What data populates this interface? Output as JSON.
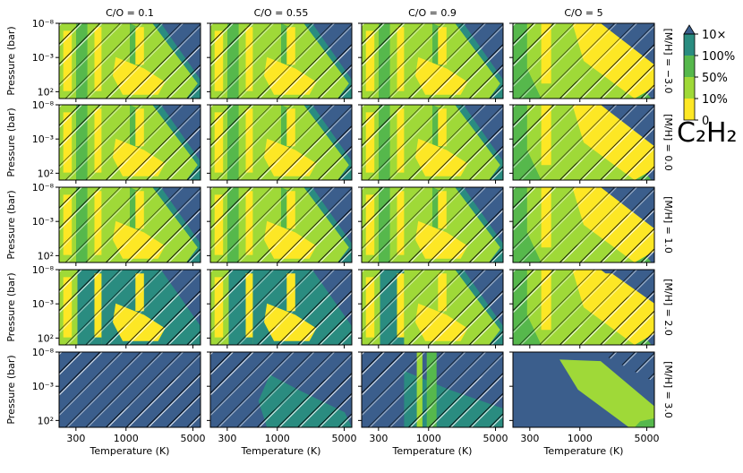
{
  "chart_data": {
    "type": "heatmap",
    "title": "C₂H₂",
    "xlabel": "Temperature (K)",
    "ylabel": "Pressure (bar)",
    "xscale": "log",
    "yscale": "log",
    "xlim": [
      200,
      6000
    ],
    "ylim": [
      1000,
      1e-08
    ],
    "x_ticks": [
      "300",
      "1000",
      "5000"
    ],
    "x_tick_values": [
      300,
      1000,
      5000
    ],
    "y_ticks": [
      "10⁻⁸",
      "10⁻³",
      "10²"
    ],
    "y_tick_values": [
      1e-08,
      0.001,
      100
    ],
    "columns": [
      "C/O = 0.1",
      "C/O = 0.55",
      "C/O = 0.9",
      "C/O = 5"
    ],
    "rows": [
      "[M/H] = −3.0",
      "[M/H] = 0.0",
      "[M/H] = 1.0",
      "[M/H] = 2.0",
      "[M/H] = 3.0"
    ],
    "colorbar": {
      "levels": [
        "0",
        "10%",
        "50%",
        "100%",
        "10×"
      ],
      "colors": [
        "#fde725",
        "#9fd938",
        "#56b84c",
        "#2a8c80",
        "#3b5e8c"
      ],
      "extend": "max"
    },
    "hatching": "diagonal, marks regions outside the valid domain (upper-left and lower-right of each panel)",
    "grid": false,
    "legend_position": "right"
  }
}
